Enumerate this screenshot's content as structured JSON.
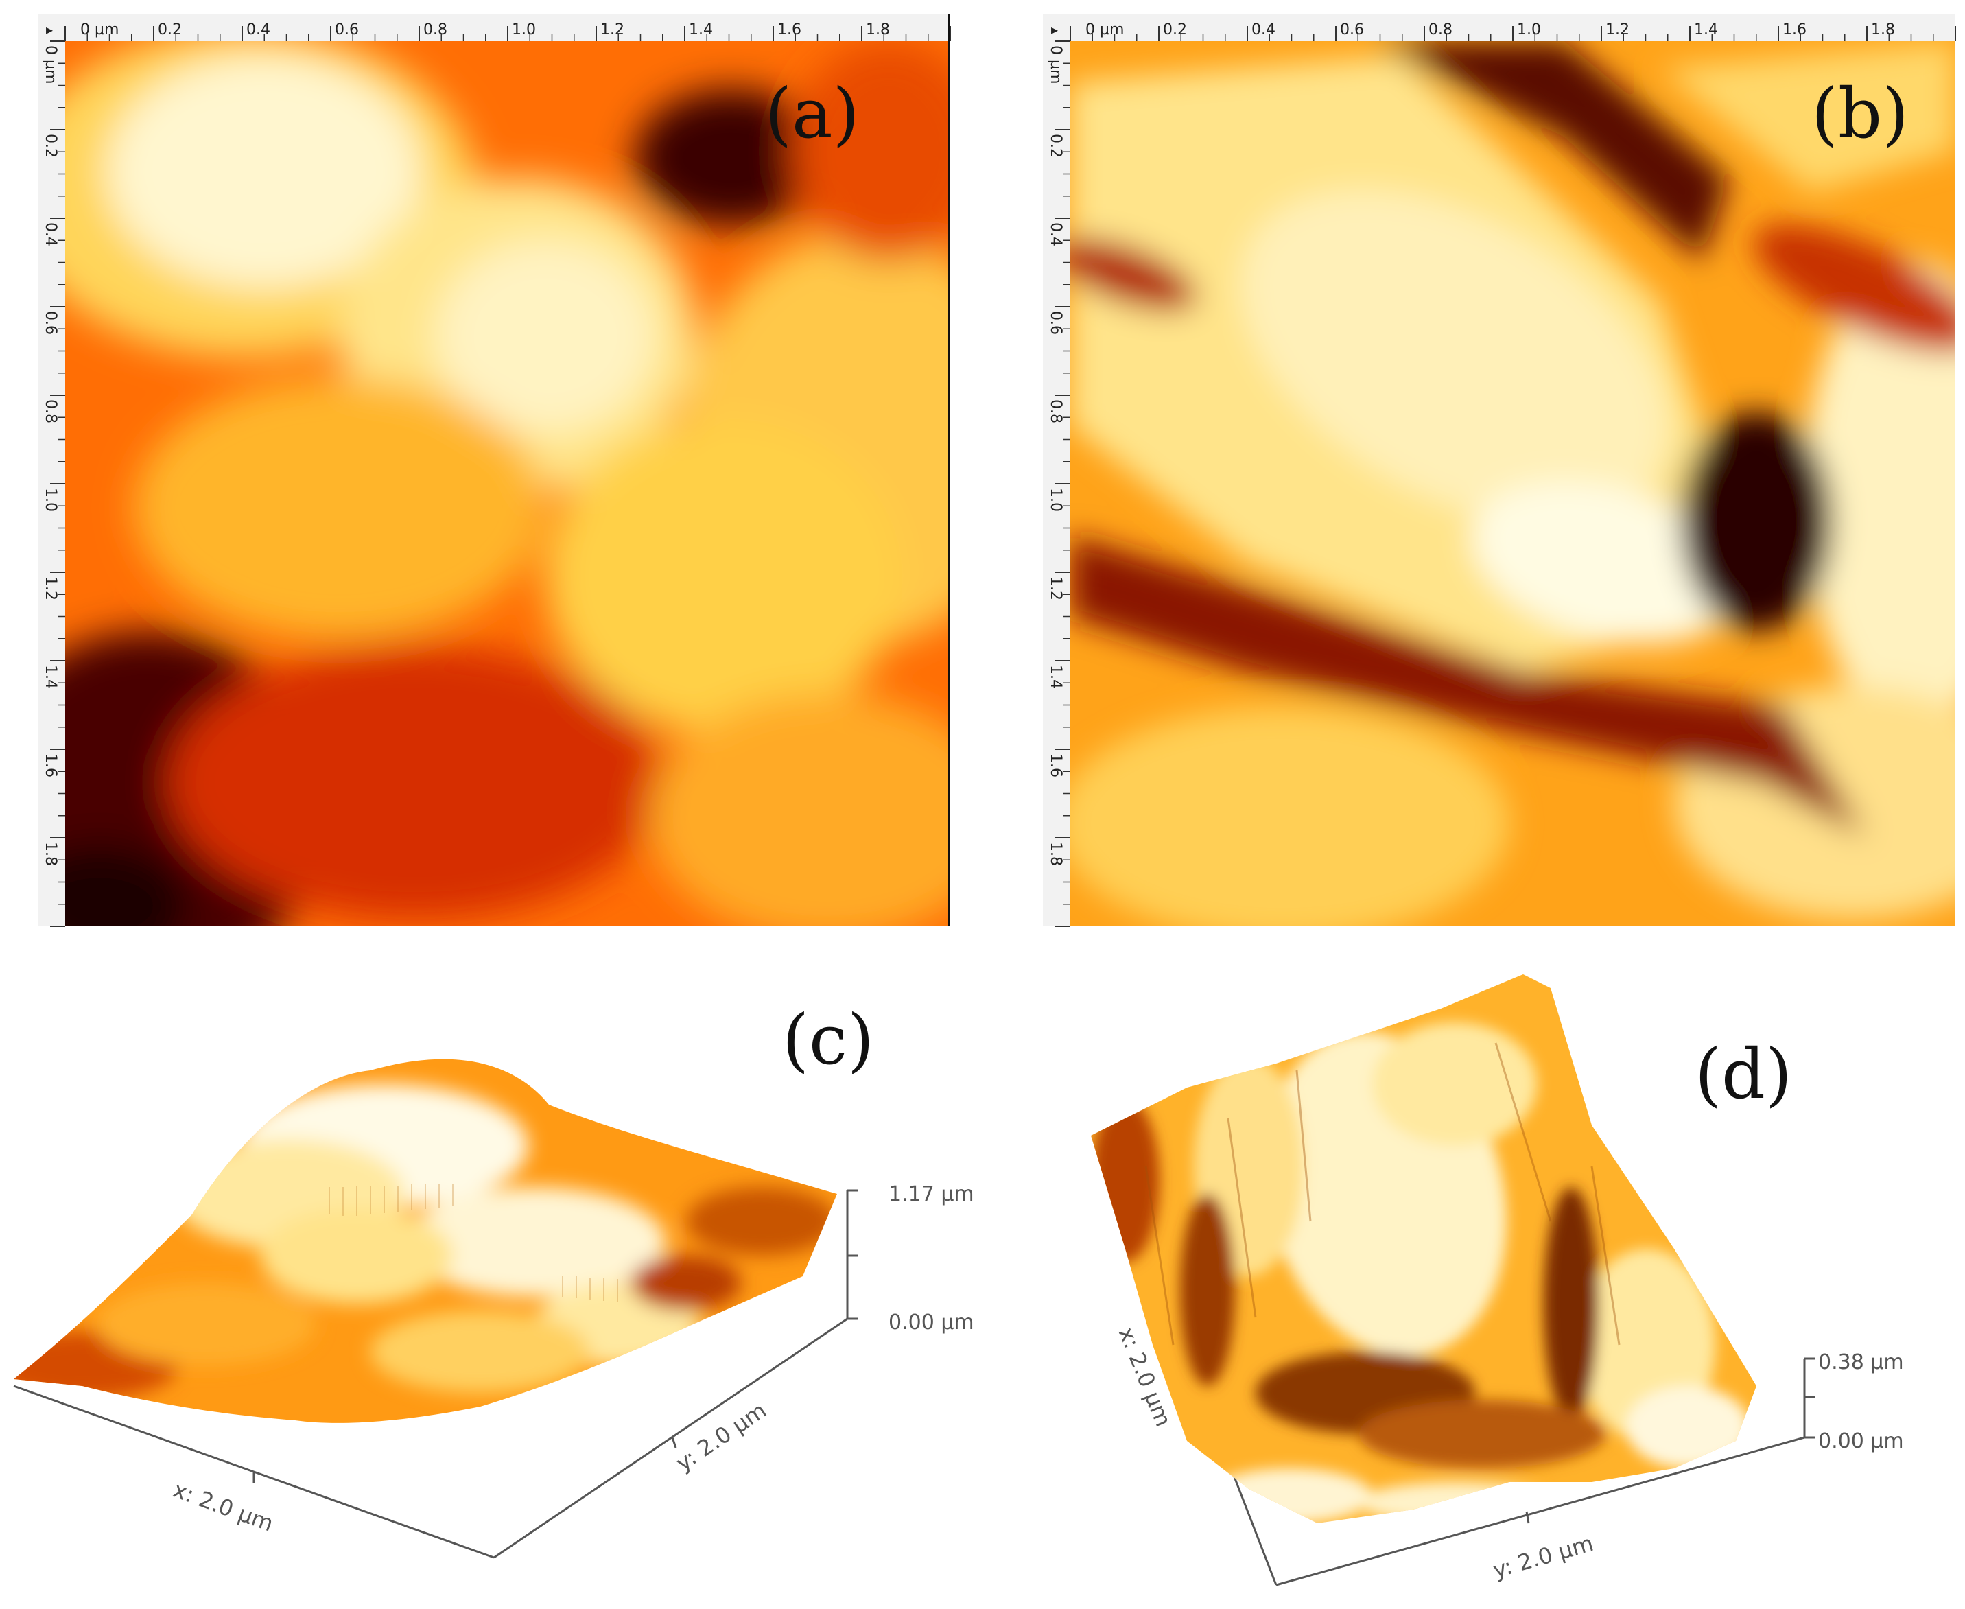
{
  "figure": {
    "panels": [
      {
        "id": "a",
        "label": "(a)",
        "type": "2d-height-map",
        "ruler_unit_label": "0 µm",
        "ruler_ticks": [
          "0.2",
          "0.4",
          "0.6",
          "0.8",
          "1.0",
          "1.2",
          "1.4",
          "1.6",
          "1.8"
        ],
        "colormap": [
          "#2a0200",
          "#7a0f00",
          "#d43600",
          "#ff6a00",
          "#ffa80f",
          "#ffd24a",
          "#fff2b0",
          "#fffbe6"
        ]
      },
      {
        "id": "b",
        "label": "(b)",
        "type": "2d-height-map",
        "ruler_unit_label": "0 µm",
        "ruler_ticks": [
          "0.2",
          "0.4",
          "0.6",
          "0.8",
          "1.0",
          "1.2",
          "1.4",
          "1.6",
          "1.8"
        ],
        "colormap": [
          "#2a0200",
          "#7a0f00",
          "#d43600",
          "#ff6a00",
          "#ffa80f",
          "#ffd24a",
          "#fff2b0",
          "#fffbe6"
        ]
      },
      {
        "id": "c",
        "label": "(c)",
        "type": "3d-surface",
        "x_axis_label": "x: 2.0 µm",
        "y_axis_label": "y: 2.0 µm",
        "z_max_label": "1.17 µm",
        "z_min_label": "0.00 µm"
      },
      {
        "id": "d",
        "label": "(d)",
        "type": "3d-surface",
        "x_axis_label": "x: 2.0 µm",
        "y_axis_label": "y: 2.0 µm",
        "z_max_label": "0.38 µm",
        "z_min_label": "0.00 µm"
      }
    ]
  }
}
